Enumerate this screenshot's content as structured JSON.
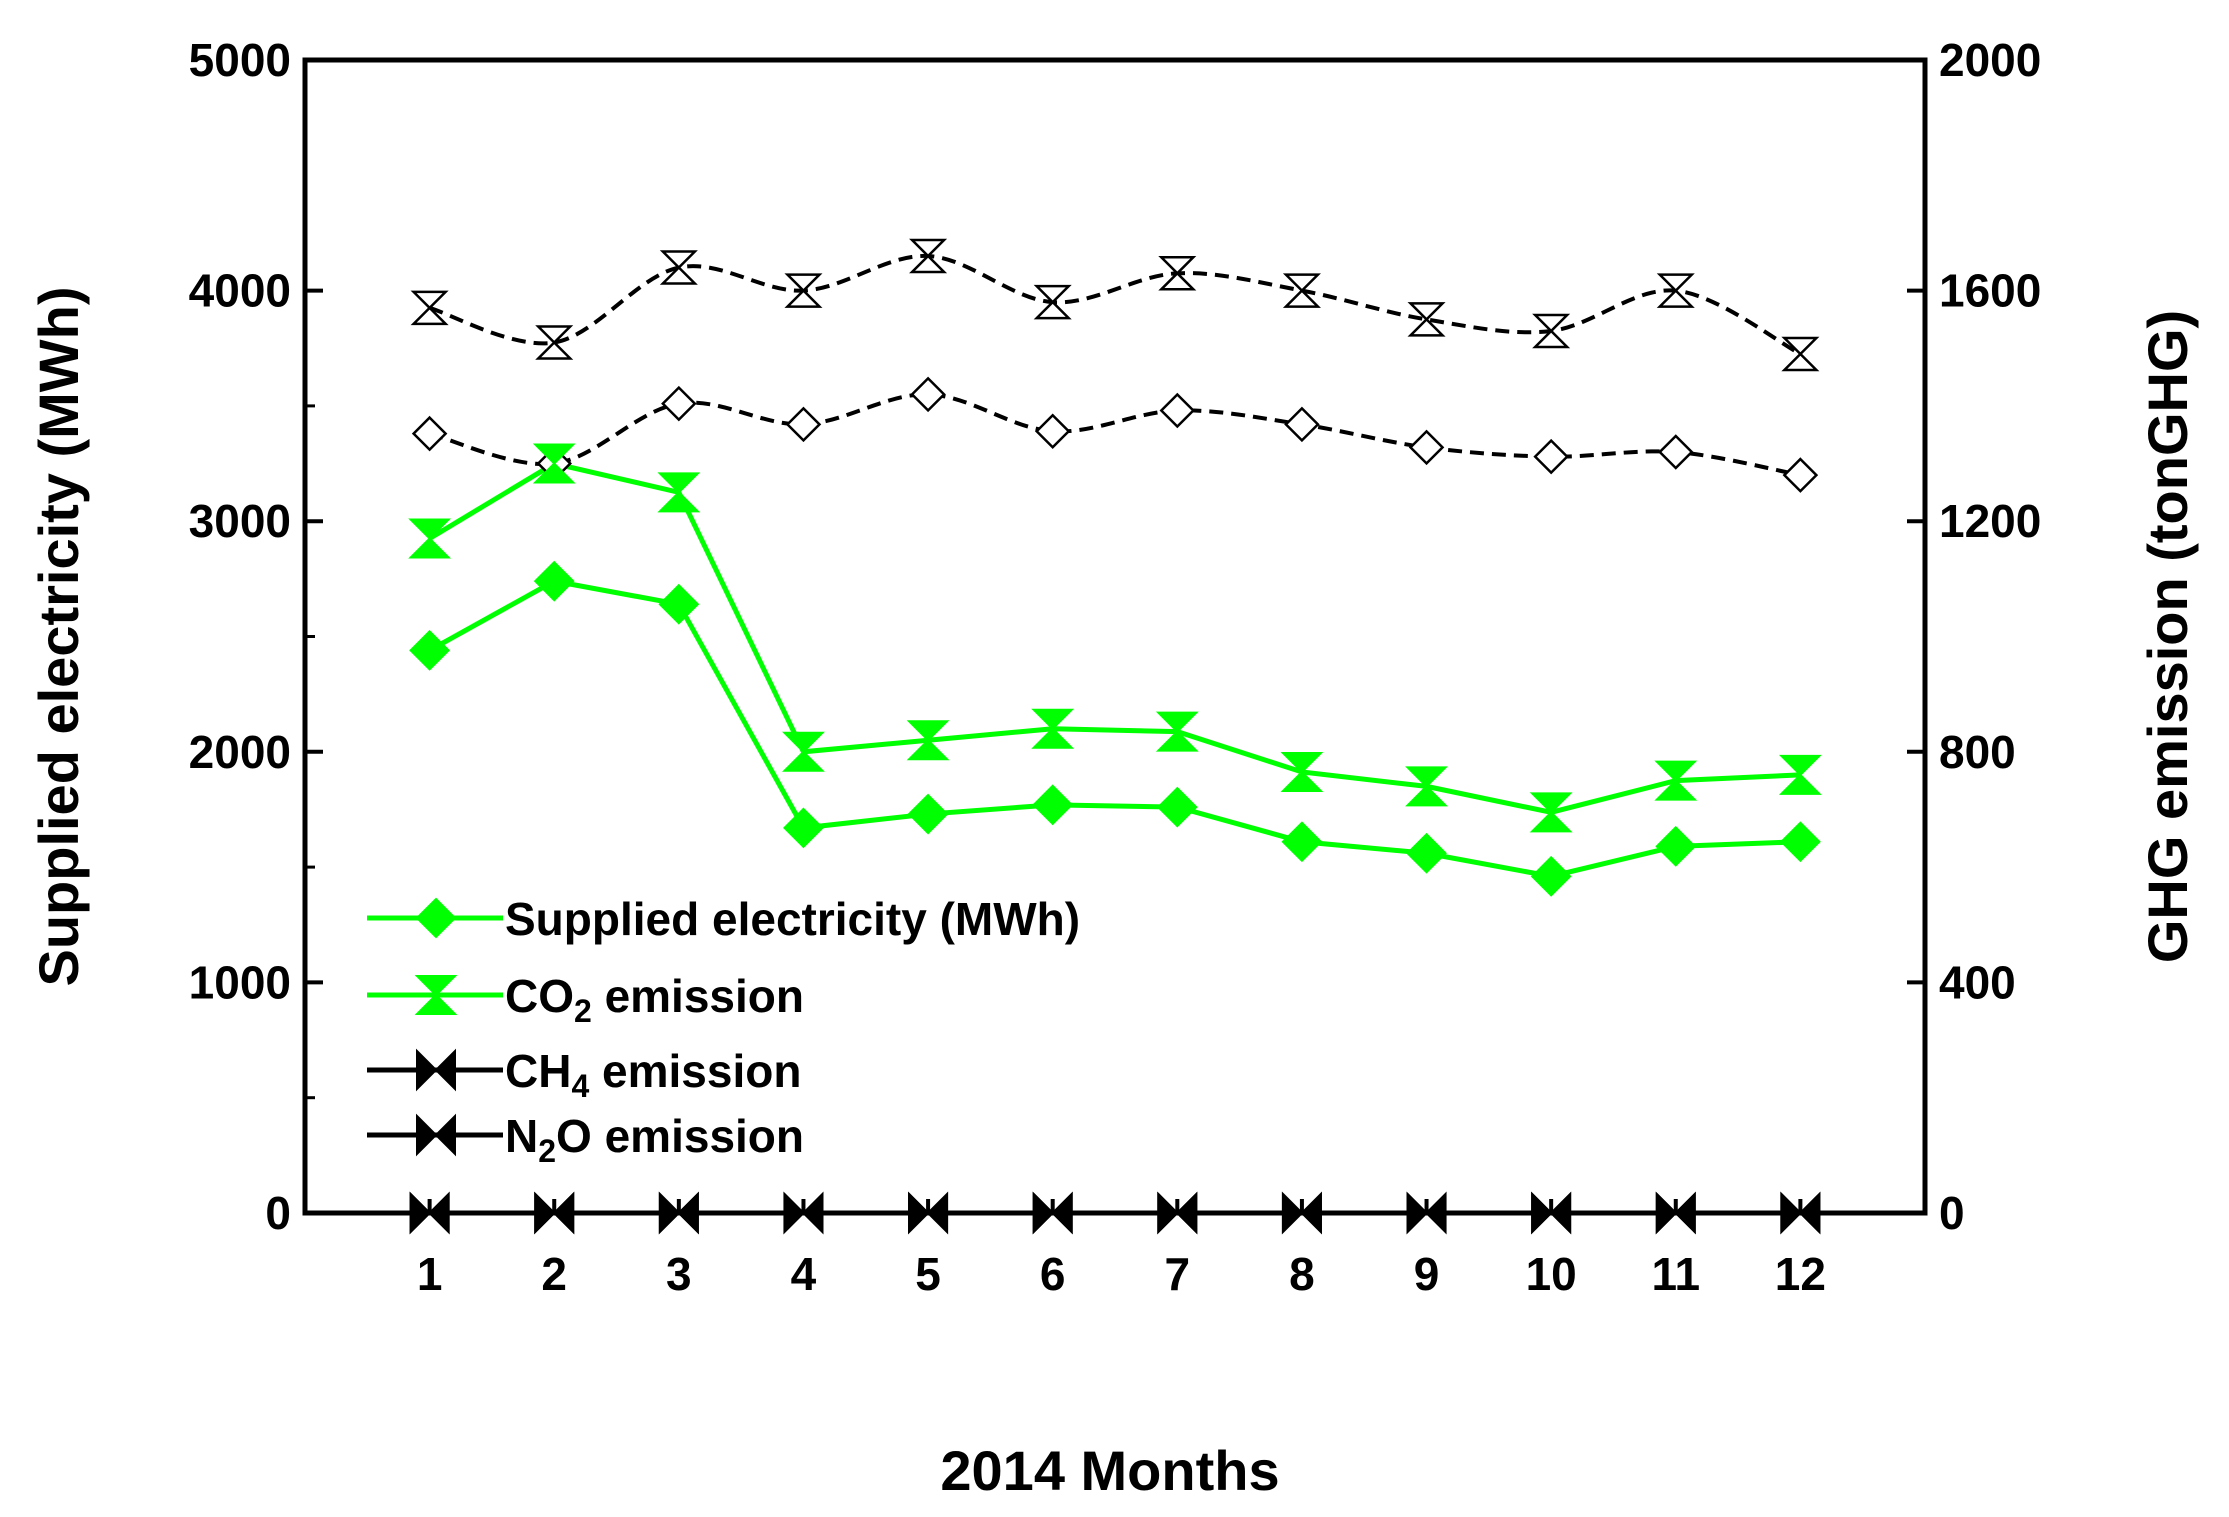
{
  "chart_data": {
    "type": "line",
    "xlabel": "2014 Months",
    "ylabel_left": "Supplied electricity (MWh)",
    "ylabel_right": "GHG emission (tonGHG)",
    "x": [
      1,
      2,
      3,
      4,
      5,
      6,
      7,
      8,
      9,
      10,
      11,
      12
    ],
    "xticks": [
      "1",
      "2",
      "3",
      "4",
      "5",
      "6",
      "7",
      "8",
      "9",
      "10",
      "11",
      "12"
    ],
    "ylim_left": [
      0,
      5000
    ],
    "yticks_left": [
      "0",
      "1000",
      "2000",
      "3000",
      "4000",
      "5000"
    ],
    "ylim_right": [
      0,
      2000
    ],
    "yticks_right": [
      "0",
      "400",
      "800",
      "1200",
      "1600",
      "2000"
    ],
    "grid": false,
    "legend_position": "lower-left",
    "series": [
      {
        "name": "Supplied electricity (MWh)",
        "name_main": "Supplied electricity (MWh)",
        "name_sub": "",
        "name_tail": "",
        "axis": "left",
        "color": "#00ff00",
        "marker": "filled-diamond",
        "line": "solid",
        "values": [
          2440,
          2740,
          2640,
          1670,
          1730,
          1770,
          1760,
          1610,
          1560,
          1460,
          1590,
          1610
        ]
      },
      {
        "name": "CO2 emission",
        "name_main": "CO",
        "name_sub": "2",
        "name_tail": " emission",
        "axis": "right",
        "color": "#00ff00",
        "marker": "filled-hourglass",
        "line": "solid",
        "values": [
          1170,
          1300,
          1250,
          800,
          820,
          840,
          835,
          765,
          740,
          695,
          750,
          760
        ]
      },
      {
        "name": "CH4 emission",
        "name_main": "CH",
        "name_sub": "4",
        "name_tail": " emission",
        "axis": "right",
        "color": "#000000",
        "marker": "filled-bowtie",
        "line": "solid",
        "values": [
          0,
          0,
          0,
          0,
          0,
          0,
          0,
          0,
          0,
          0,
          0,
          0
        ]
      },
      {
        "name": "N2O emission",
        "name_main": "N",
        "name_sub": "2",
        "name_tail": "O emission",
        "axis": "right",
        "color": "#000000",
        "marker": "filled-bowtie",
        "line": "solid",
        "values": [
          0,
          0,
          0,
          0,
          0,
          0,
          0,
          0,
          0,
          0,
          0,
          0
        ]
      },
      {
        "name": "",
        "axis": "left",
        "color": "#000000",
        "marker": "open-diamond",
        "line": "dashed",
        "in_legend": false,
        "values": [
          3380,
          3250,
          3510,
          3420,
          3550,
          3390,
          3480,
          3420,
          3320,
          3280,
          3300,
          3200
        ]
      },
      {
        "name": "",
        "axis": "right",
        "color": "#000000",
        "marker": "open-hourglass",
        "line": "dashed",
        "in_legend": false,
        "values": [
          1570,
          1510,
          1640,
          1600,
          1660,
          1580,
          1630,
          1600,
          1550,
          1530,
          1600,
          1490
        ]
      }
    ]
  }
}
